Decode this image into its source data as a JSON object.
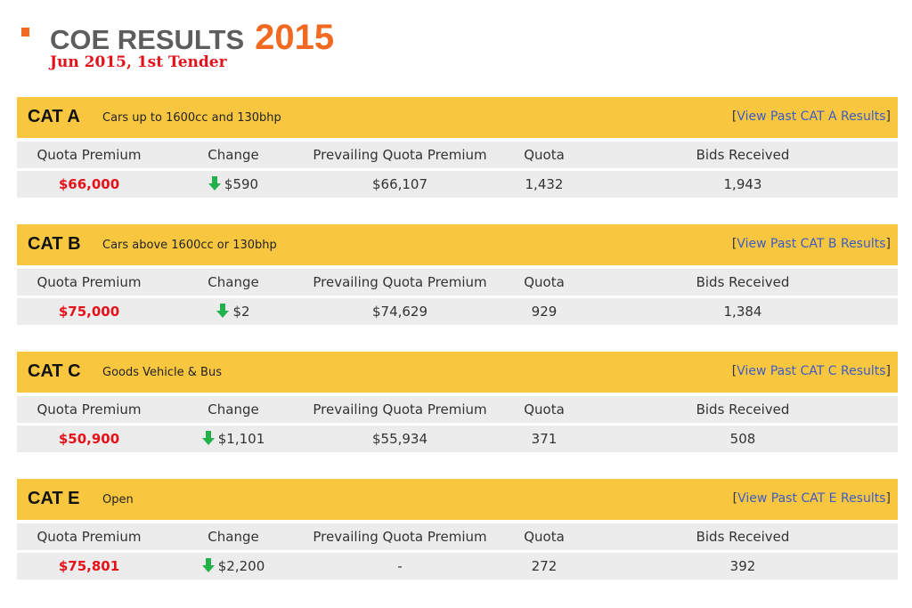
{
  "page": {
    "title_main": "COE RESULTS",
    "title_year": "2015",
    "subtitle": "Jun 2015, 1st Tender"
  },
  "columns": {
    "quota_premium": "Quota Premium",
    "change": "Change",
    "prevailing": "Prevailing Quota Premium",
    "quota": "Quota",
    "bids": "Bids Received"
  },
  "categories": [
    {
      "code": "CAT A",
      "description": "Cars up to 1600cc and 130bhp",
      "link_open": "[",
      "link_text": "View Past CAT A Results",
      "link_close": "]",
      "quota_premium": "$66,000",
      "change": "$590",
      "change_direction": "down",
      "prevailing": "$66,107",
      "quota": "1,432",
      "bids": "1,943"
    },
    {
      "code": "CAT B",
      "description": "Cars above 1600cc or 130bhp",
      "link_open": "[",
      "link_text": "View Past CAT B Results",
      "link_close": "]",
      "quota_premium": "$75,000",
      "change": "$2",
      "change_direction": "down",
      "prevailing": "$74,629",
      "quota": "929",
      "bids": "1,384"
    },
    {
      "code": "CAT C",
      "description": "Goods Vehicle & Bus",
      "link_open": "[",
      "link_text": "View Past CAT C Results",
      "link_close": "]",
      "quota_premium": "$50,900",
      "change": "$1,101",
      "change_direction": "down",
      "prevailing": "$55,934",
      "quota": "371",
      "bids": "508"
    },
    {
      "code": "CAT E",
      "description": "Open",
      "link_open": "[",
      "link_text": "View Past CAT E Results",
      "link_close": "]",
      "quota_premium": "$75,801",
      "change": "$2,200",
      "change_direction": "down",
      "prevailing": "-",
      "quota": "272",
      "bids": "392"
    }
  ],
  "colors": {
    "accent_orange": "#f26a21",
    "header_yellow": "#f8c73f",
    "premium_red": "#e4121b",
    "down_arrow_green": "#22b24c",
    "link_blue": "#3d5bc4"
  },
  "icons": {
    "bullet": "square-bullet-icon",
    "change": "arrow-down-icon"
  }
}
